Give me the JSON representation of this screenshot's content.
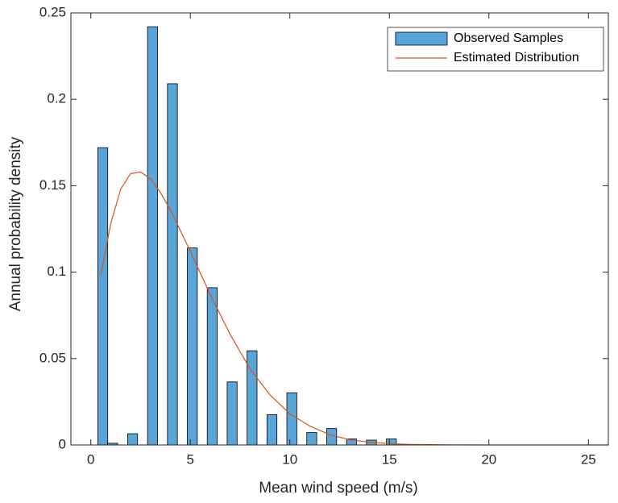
{
  "chart_data": {
    "type": "bar",
    "xlabel": "Mean wind speed (m/s)",
    "ylabel": "Annual probability density",
    "xlim": [
      -1,
      26
    ],
    "xticks": [
      0,
      5,
      10,
      15,
      20,
      25
    ],
    "ylim": [
      0,
      0.25
    ],
    "yticks": [
      0,
      0.05,
      0.1,
      0.15,
      0.2,
      0.25
    ],
    "grid": false,
    "legend": "northeast",
    "series": [
      {
        "name": "Observed Samples",
        "type": "bar",
        "color": "#5aa5d8",
        "x": [
          0.6,
          1.1,
          2.1,
          3.1,
          4.1,
          5.1,
          6.1,
          7.1,
          8.1,
          9.1,
          10.1,
          11.1,
          12.1,
          13.1,
          14.1,
          15.1
        ],
        "values": [
          0.172,
          0.001,
          0.0065,
          0.242,
          0.209,
          0.114,
          0.091,
          0.0365,
          0.0545,
          0.0175,
          0.0302,
          0.0072,
          0.0095,
          0.0035,
          0.0028,
          0.0035
        ]
      },
      {
        "name": "Estimated Distribution",
        "type": "line",
        "color": "#d95319",
        "x": [
          0.5,
          1,
          1.5,
          2,
          2.5,
          3,
          3.5,
          4,
          5,
          6,
          7,
          8,
          9,
          10,
          11,
          12,
          13,
          14,
          15,
          16,
          18,
          20,
          22,
          24,
          26
        ],
        "values": [
          0.098,
          0.128,
          0.148,
          0.157,
          0.158,
          0.154,
          0.146,
          0.136,
          0.112,
          0.087,
          0.064,
          0.044,
          0.029,
          0.018,
          0.011,
          0.006,
          0.003,
          0.0016,
          0.0008,
          0.0003,
          5e-05,
          0,
          0,
          0,
          0
        ]
      }
    ]
  }
}
